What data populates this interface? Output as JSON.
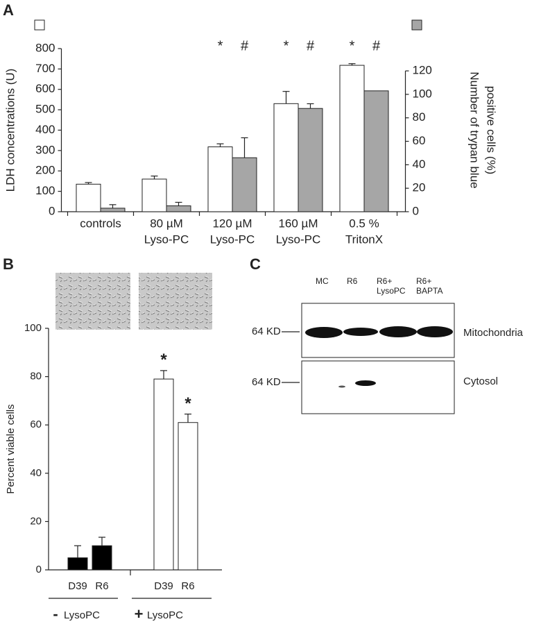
{
  "panels": [
    "A",
    "B",
    "C"
  ],
  "chart_data": [
    {
      "type": "bar",
      "categories": [
        [
          "controls"
        ],
        [
          "80 µM",
          "Lyso-PC"
        ],
        [
          "120 µM",
          "Lyso-PC"
        ],
        [
          "160 µM",
          "Lyso-PC"
        ],
        [
          "0.5 %",
          "TritonX"
        ]
      ],
      "series": [
        {
          "color": "#ffffff",
          "values": [
            135,
            160,
            318,
            530,
            718
          ],
          "errors": [
            8,
            15,
            15,
            60,
            8
          ],
          "significance": [
            null,
            null,
            "*",
            "*",
            "*"
          ]
        },
        {
          "color": "#a6a6a6",
          "axis": "y2",
          "values": [
            3,
            5,
            46,
            88,
            103
          ],
          "errors": [
            3,
            3,
            17,
            4,
            null
          ],
          "significance": [
            null,
            null,
            "#",
            "#",
            "#"
          ]
        }
      ],
      "ylabel": "LDH concentrations (U)",
      "y2label": [
        "Number of trypan blue",
        "positive cells (%)"
      ],
      "ylim": [
        0,
        800
      ],
      "yticks": [
        0,
        100,
        200,
        300,
        400,
        500,
        600,
        700,
        800
      ],
      "y2lim": [
        0,
        139
      ],
      "y2ticks": [
        0,
        20,
        40,
        60,
        80,
        100,
        120
      ]
    },
    {
      "type": "bar",
      "categories": [
        "D39",
        "R6",
        "D39",
        "R6"
      ],
      "values": [
        5,
        10,
        79,
        61
      ],
      "errors": [
        5,
        3.5,
        3.5,
        3.5
      ],
      "colors": [
        "#000000",
        "#000000",
        "#ffffff",
        "#ffffff"
      ],
      "significance": [
        null,
        null,
        "*",
        "*"
      ],
      "groups": [
        {
          "sign": "-",
          "label": "LysoPC"
        },
        {
          "sign": "+",
          "label": "LysoPC"
        }
      ],
      "ylabel": "Percent viable cells",
      "ylim": [
        0,
        100
      ],
      "yticks": [
        0,
        20,
        40,
        60,
        80,
        100
      ]
    }
  ],
  "blot": {
    "lanes": [
      [
        "MC"
      ],
      [
        "R6"
      ],
      [
        "R6+",
        "LysoPC"
      ],
      [
        "R6+",
        "BAPTA"
      ]
    ],
    "rows": [
      {
        "marker": "64 KD",
        "label": "Mitochondria"
      },
      {
        "marker": "64 KD",
        "label": "Cytosol"
      }
    ]
  }
}
